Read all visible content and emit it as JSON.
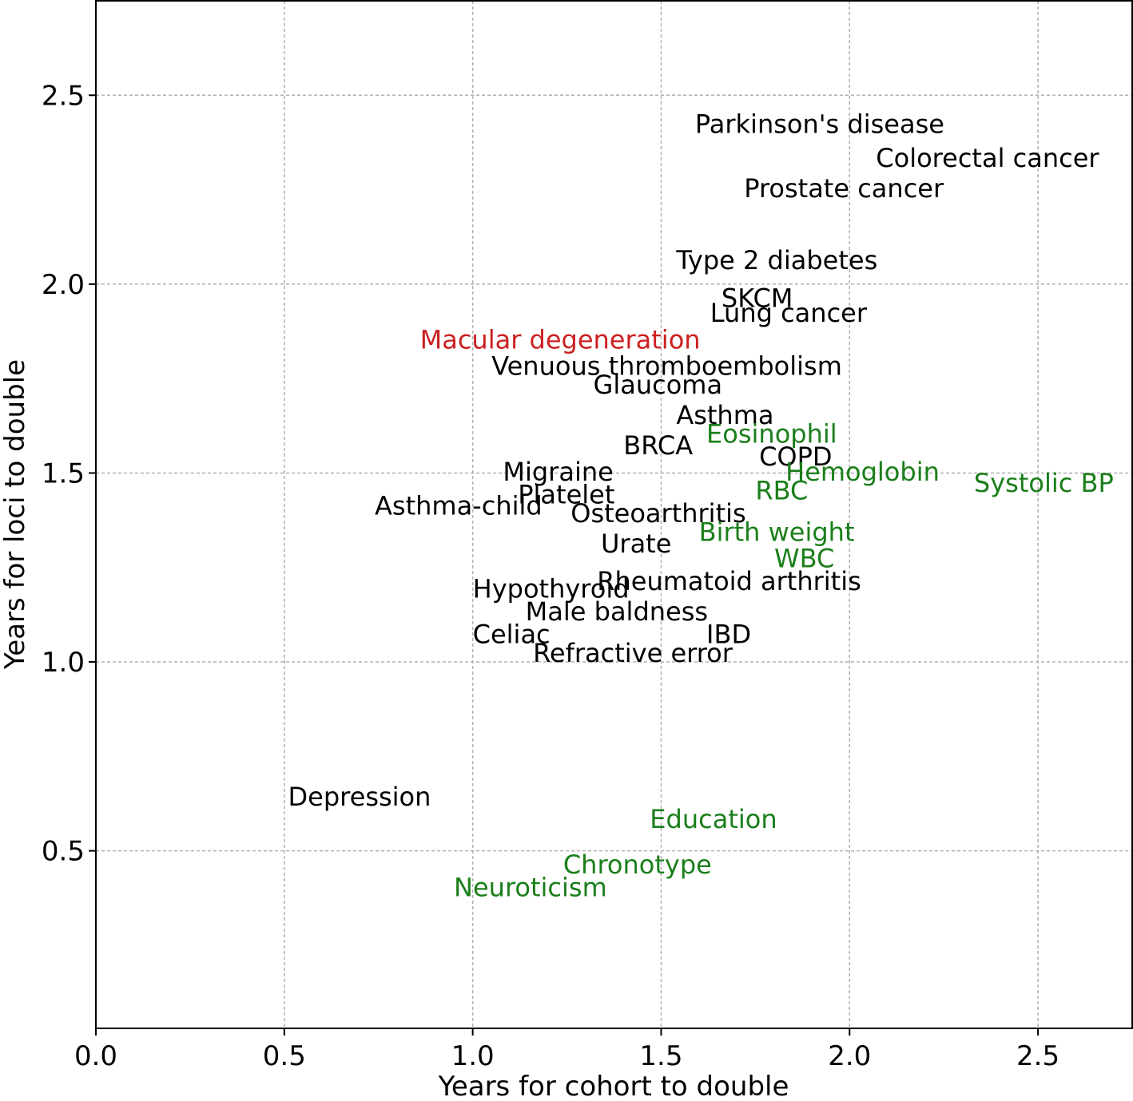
{
  "chart_data": {
    "type": "scatter",
    "title": "",
    "xlabel": "Years for cohort to double",
    "ylabel": "Years for loci to double",
    "xlim": [
      0,
      2.75
    ],
    "ylim": [
      0.03,
      2.75
    ],
    "xticks": [
      "0.0",
      "0.5",
      "1.0",
      "1.5",
      "2.0",
      "2.5"
    ],
    "yticks": [
      "0.5",
      "1.0",
      "1.5",
      "2.0",
      "2.5"
    ],
    "xtick_values": [
      0,
      0.5,
      1.0,
      1.5,
      2.0,
      2.5
    ],
    "ytick_values": [
      0.5,
      1.0,
      1.5,
      2.0,
      2.5
    ],
    "grid": true,
    "marker": "text labels only",
    "colors": {
      "disease": "#000000",
      "trait": "#1a7f1a",
      "highlight": "#cc1f1f"
    },
    "points": [
      {
        "label": "Parkinson's disease",
        "x": 1.59,
        "y": 2.4,
        "group": "disease"
      },
      {
        "label": "Colorectal cancer",
        "x": 2.07,
        "y": 2.31,
        "group": "disease"
      },
      {
        "label": "Prostate cancer",
        "x": 1.72,
        "y": 2.23,
        "group": "disease"
      },
      {
        "label": "Type 2 diabetes",
        "x": 1.54,
        "y": 2.04,
        "group": "disease"
      },
      {
        "label": "SKCM",
        "x": 1.66,
        "y": 1.94,
        "group": "disease"
      },
      {
        "label": "Lung cancer",
        "x": 1.63,
        "y": 1.9,
        "group": "disease"
      },
      {
        "label": "Macular degeneration",
        "x": 0.86,
        "y": 1.83,
        "group": "highlight"
      },
      {
        "label": "Venuous thromboembolism",
        "x": 1.05,
        "y": 1.76,
        "group": "disease"
      },
      {
        "label": "Glaucoma",
        "x": 1.32,
        "y": 1.71,
        "group": "disease"
      },
      {
        "label": "Asthma",
        "x": 1.54,
        "y": 1.63,
        "group": "disease"
      },
      {
        "label": "Eosinophil",
        "x": 1.62,
        "y": 1.58,
        "group": "trait"
      },
      {
        "label": "BRCA",
        "x": 1.4,
        "y": 1.55,
        "group": "disease"
      },
      {
        "label": "COPD",
        "x": 1.76,
        "y": 1.52,
        "group": "disease"
      },
      {
        "label": "Migraine",
        "x": 1.08,
        "y": 1.48,
        "group": "disease"
      },
      {
        "label": "Hemoglobin",
        "x": 1.83,
        "y": 1.48,
        "group": "trait"
      },
      {
        "label": "Systolic BP",
        "x": 2.33,
        "y": 1.45,
        "group": "trait"
      },
      {
        "label": "RBC",
        "x": 1.75,
        "y": 1.43,
        "group": "trait"
      },
      {
        "label": "Platelet",
        "x": 1.12,
        "y": 1.42,
        "group": "disease"
      },
      {
        "label": "Asthma-child",
        "x": 0.74,
        "y": 1.39,
        "group": "disease"
      },
      {
        "label": "Osteoarthritis",
        "x": 1.26,
        "y": 1.37,
        "group": "disease"
      },
      {
        "label": "Birth weight",
        "x": 1.6,
        "y": 1.32,
        "group": "trait"
      },
      {
        "label": "Urate",
        "x": 1.34,
        "y": 1.29,
        "group": "disease"
      },
      {
        "label": "WBC",
        "x": 1.8,
        "y": 1.25,
        "group": "trait"
      },
      {
        "label": "Rheumatoid arthritis",
        "x": 1.33,
        "y": 1.19,
        "group": "disease"
      },
      {
        "label": "Hypothyroid",
        "x": 1.0,
        "y": 1.17,
        "group": "disease"
      },
      {
        "label": "Male baldness",
        "x": 1.14,
        "y": 1.11,
        "group": "disease"
      },
      {
        "label": "Celiac",
        "x": 1.0,
        "y": 1.05,
        "group": "disease"
      },
      {
        "label": "IBD",
        "x": 1.62,
        "y": 1.05,
        "group": "disease"
      },
      {
        "label": "Refractive error",
        "x": 1.16,
        "y": 1.0,
        "group": "disease"
      },
      {
        "label": "Depression",
        "x": 0.51,
        "y": 0.62,
        "group": "disease"
      },
      {
        "label": "Education",
        "x": 1.47,
        "y": 0.56,
        "group": "trait"
      },
      {
        "label": "Chronotype",
        "x": 1.24,
        "y": 0.44,
        "group": "trait"
      },
      {
        "label": "Neuroticism",
        "x": 0.95,
        "y": 0.38,
        "group": "trait"
      }
    ]
  }
}
